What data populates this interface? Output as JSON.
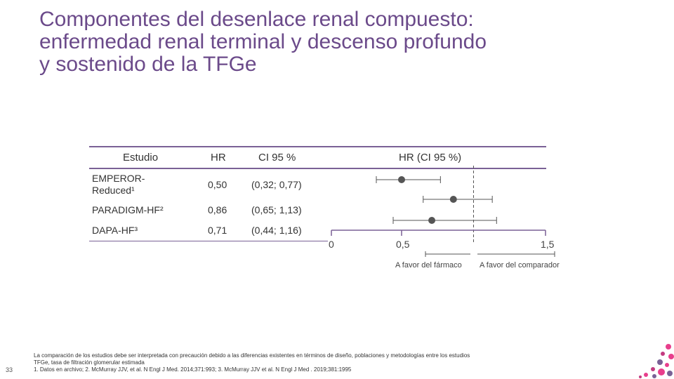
{
  "title": {
    "line1": "Componentes del desenlace renal compuesto:",
    "line2": "enfermedad renal terminal y descenso profundo",
    "line3": "y sostenido de la TFGe"
  },
  "table": {
    "headers": {
      "study": "Estudio",
      "hr": "HR",
      "ci": "CI 95 %",
      "plot": "HR (CI 95 %)"
    },
    "rows": [
      {
        "study_line1": "EMPEROR-",
        "study_line2": "Reduced¹",
        "hr": "0,50",
        "ci": "(0,32; 0,77)"
      },
      {
        "study_line1": "PARADIGM-HF²",
        "study_line2": "",
        "hr": "0,86",
        "ci": "(0,65; 1,13)"
      },
      {
        "study_line1": "DAPA-HF³",
        "study_line2": "",
        "hr": "0,71",
        "ci": "(0,44; 1,16)"
      }
    ]
  },
  "chart_data": {
    "type": "forest",
    "categories": [
      "EMPEROR-Reduced¹",
      "PARADIGM-HF²",
      "DAPA-HF³"
    ],
    "series": [
      {
        "hr": [
          0.5,
          0.86,
          0.71
        ],
        "ci_low": [
          0.32,
          0.65,
          0.44
        ],
        "ci_high": [
          0.77,
          1.13,
          1.16
        ]
      }
    ],
    "x_ticks": [
      "0",
      "0,5",
      "1,5"
    ],
    "reference_line": 1.0,
    "xlim": [
      0,
      1.5
    ],
    "favor_left": "A favor del fármaco",
    "favor_right": "A favor del comparador",
    "colors": {
      "marker": "#555555",
      "line": "#555555",
      "axis": "#7a6196"
    }
  },
  "footnotes": {
    "line1": "La comparación de los estudios debe ser interpretada con precaución debido a las diferencias existentes en términos de diseño, poblaciones y metodologías entre los estudios",
    "line2": "TFGe, tasa de filtración glomerular estimada",
    "line3": "1. Datos en archivo; 2. McMurray JJV, et al. N Engl J Med. 2014;371:993; 3. McMurray JJV et al. N Engl J Med . 2019;381:1995"
  },
  "page_number": "33"
}
